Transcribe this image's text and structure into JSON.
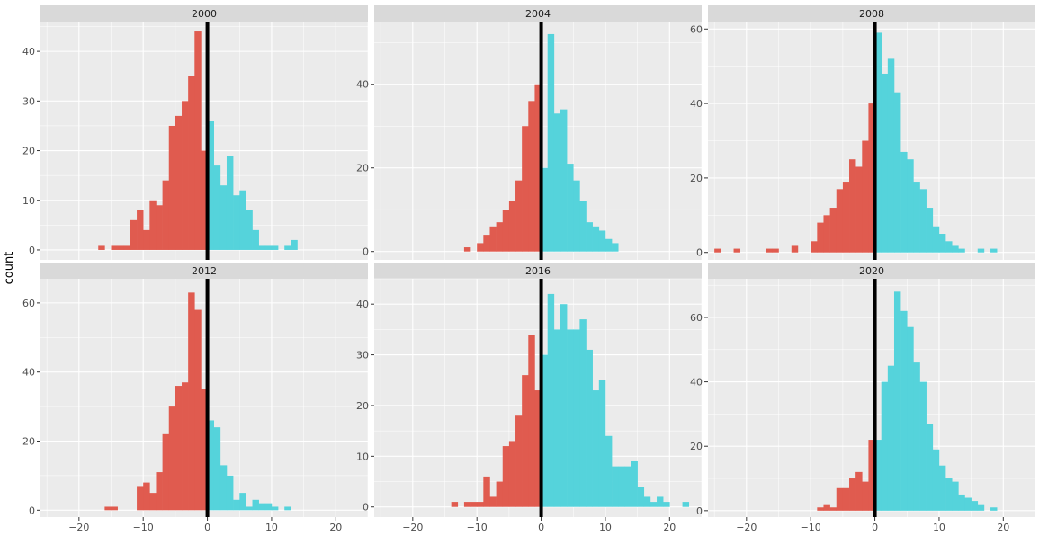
{
  "chart_data": {
    "type": "histogram",
    "ylabel": "count",
    "xlim": [
      -26,
      25
    ],
    "x_ticks": [
      -20,
      -10,
      0,
      10,
      20
    ],
    "vline_x": 0,
    "bin_width": 1,
    "fill_colors": {
      "negative": "#E05B4F",
      "positive": "#55D3DB"
    },
    "panel_background": "#EBEBEB",
    "strip_background": "#D9D9D9",
    "grid_color": "#FFFFFF",
    "grid": true,
    "panels": [
      {
        "label": "2000",
        "ylim": [
          -2,
          46
        ],
        "y_ticks": [
          0,
          10,
          20,
          30,
          40
        ],
        "bins": [
          {
            "x": -17,
            "count": 1
          },
          {
            "x": -15,
            "count": 1
          },
          {
            "x": -14,
            "count": 1
          },
          {
            "x": -13,
            "count": 1
          },
          {
            "x": -12,
            "count": 6
          },
          {
            "x": -11,
            "count": 8
          },
          {
            "x": -10,
            "count": 4
          },
          {
            "x": -9,
            "count": 10
          },
          {
            "x": -8,
            "count": 9
          },
          {
            "x": -7,
            "count": 14
          },
          {
            "x": -6,
            "count": 25
          },
          {
            "x": -5,
            "count": 27
          },
          {
            "x": -4,
            "count": 30
          },
          {
            "x": -3,
            "count": 35
          },
          {
            "x": -2,
            "count": 44
          },
          {
            "x": -1,
            "count": 20
          },
          {
            "x": 0,
            "count": 26
          },
          {
            "x": 1,
            "count": 17
          },
          {
            "x": 2,
            "count": 13
          },
          {
            "x": 3,
            "count": 19
          },
          {
            "x": 4,
            "count": 11
          },
          {
            "x": 5,
            "count": 12
          },
          {
            "x": 6,
            "count": 8
          },
          {
            "x": 7,
            "count": 4
          },
          {
            "x": 8,
            "count": 1
          },
          {
            "x": 9,
            "count": 1
          },
          {
            "x": 10,
            "count": 1
          },
          {
            "x": 11,
            "count": 0
          },
          {
            "x": 12,
            "count": 1
          },
          {
            "x": 13,
            "count": 2
          }
        ]
      },
      {
        "label": "2004",
        "ylim": [
          -2,
          55
        ],
        "y_ticks": [
          0,
          20,
          40
        ],
        "bins": [
          {
            "x": -12,
            "count": 1
          },
          {
            "x": -10,
            "count": 2
          },
          {
            "x": -9,
            "count": 4
          },
          {
            "x": -8,
            "count": 6
          },
          {
            "x": -7,
            "count": 7
          },
          {
            "x": -6,
            "count": 10
          },
          {
            "x": -5,
            "count": 12
          },
          {
            "x": -4,
            "count": 17
          },
          {
            "x": -3,
            "count": 30
          },
          {
            "x": -2,
            "count": 36
          },
          {
            "x": -1,
            "count": 40
          },
          {
            "x": 0,
            "count": 20
          },
          {
            "x": 1,
            "count": 52
          },
          {
            "x": 2,
            "count": 33
          },
          {
            "x": 3,
            "count": 34
          },
          {
            "x": 4,
            "count": 21
          },
          {
            "x": 5,
            "count": 17
          },
          {
            "x": 6,
            "count": 12
          },
          {
            "x": 7,
            "count": 7
          },
          {
            "x": 8,
            "count": 6
          },
          {
            "x": 9,
            "count": 5
          },
          {
            "x": 10,
            "count": 3
          },
          {
            "x": 11,
            "count": 2
          }
        ]
      },
      {
        "label": "2008",
        "ylim": [
          -2,
          62
        ],
        "y_ticks": [
          0,
          20,
          40,
          60
        ],
        "bins": [
          {
            "x": -25,
            "count": 1
          },
          {
            "x": -22,
            "count": 1
          },
          {
            "x": -17,
            "count": 1
          },
          {
            "x": -16,
            "count": 1
          },
          {
            "x": -13,
            "count": 2
          },
          {
            "x": -10,
            "count": 3
          },
          {
            "x": -9,
            "count": 8
          },
          {
            "x": -8,
            "count": 10
          },
          {
            "x": -7,
            "count": 12
          },
          {
            "x": -6,
            "count": 17
          },
          {
            "x": -5,
            "count": 19
          },
          {
            "x": -4,
            "count": 25
          },
          {
            "x": -3,
            "count": 23
          },
          {
            "x": -2,
            "count": 30
          },
          {
            "x": -1,
            "count": 40
          },
          {
            "x": 0,
            "count": 59
          },
          {
            "x": 1,
            "count": 48
          },
          {
            "x": 2,
            "count": 52
          },
          {
            "x": 3,
            "count": 43
          },
          {
            "x": 4,
            "count": 27
          },
          {
            "x": 5,
            "count": 25
          },
          {
            "x": 6,
            "count": 19
          },
          {
            "x": 7,
            "count": 17
          },
          {
            "x": 8,
            "count": 12
          },
          {
            "x": 9,
            "count": 7
          },
          {
            "x": 10,
            "count": 5
          },
          {
            "x": 11,
            "count": 3
          },
          {
            "x": 12,
            "count": 2
          },
          {
            "x": 13,
            "count": 1
          },
          {
            "x": 16,
            "count": 1
          },
          {
            "x": 18,
            "count": 1
          }
        ]
      },
      {
        "label": "2012",
        "ylim": [
          -2,
          67
        ],
        "y_ticks": [
          0,
          20,
          40,
          60
        ],
        "bins": [
          {
            "x": -16,
            "count": 1
          },
          {
            "x": -15,
            "count": 1
          },
          {
            "x": -11,
            "count": 7
          },
          {
            "x": -10,
            "count": 8
          },
          {
            "x": -9,
            "count": 5
          },
          {
            "x": -8,
            "count": 11
          },
          {
            "x": -7,
            "count": 22
          },
          {
            "x": -6,
            "count": 30
          },
          {
            "x": -5,
            "count": 36
          },
          {
            "x": -4,
            "count": 37
          },
          {
            "x": -3,
            "count": 63
          },
          {
            "x": -2,
            "count": 58
          },
          {
            "x": -1,
            "count": 35
          },
          {
            "x": 0,
            "count": 26
          },
          {
            "x": 1,
            "count": 24
          },
          {
            "x": 2,
            "count": 13
          },
          {
            "x": 3,
            "count": 10
          },
          {
            "x": 4,
            "count": 3
          },
          {
            "x": 5,
            "count": 5
          },
          {
            "x": 6,
            "count": 1
          },
          {
            "x": 7,
            "count": 3
          },
          {
            "x": 8,
            "count": 2
          },
          {
            "x": 9,
            "count": 2
          },
          {
            "x": 10,
            "count": 1
          },
          {
            "x": 12,
            "count": 1
          }
        ]
      },
      {
        "label": "2016",
        "ylim": [
          -2,
          45
        ],
        "y_ticks": [
          0,
          10,
          20,
          30,
          40
        ],
        "bins": [
          {
            "x": -14,
            "count": 1
          },
          {
            "x": -12,
            "count": 1
          },
          {
            "x": -11,
            "count": 1
          },
          {
            "x": -10,
            "count": 1
          },
          {
            "x": -9,
            "count": 6
          },
          {
            "x": -8,
            "count": 2
          },
          {
            "x": -7,
            "count": 5
          },
          {
            "x": -6,
            "count": 12
          },
          {
            "x": -5,
            "count": 13
          },
          {
            "x": -4,
            "count": 18
          },
          {
            "x": -3,
            "count": 26
          },
          {
            "x": -2,
            "count": 34
          },
          {
            "x": -1,
            "count": 23
          },
          {
            "x": 0,
            "count": 30
          },
          {
            "x": 1,
            "count": 42
          },
          {
            "x": 2,
            "count": 35
          },
          {
            "x": 3,
            "count": 40
          },
          {
            "x": 4,
            "count": 35
          },
          {
            "x": 5,
            "count": 35
          },
          {
            "x": 6,
            "count": 37
          },
          {
            "x": 7,
            "count": 31
          },
          {
            "x": 8,
            "count": 23
          },
          {
            "x": 9,
            "count": 25
          },
          {
            "x": 10,
            "count": 14
          },
          {
            "x": 11,
            "count": 8
          },
          {
            "x": 12,
            "count": 8
          },
          {
            "x": 13,
            "count": 8
          },
          {
            "x": 14,
            "count": 9
          },
          {
            "x": 15,
            "count": 4
          },
          {
            "x": 16,
            "count": 2
          },
          {
            "x": 17,
            "count": 1
          },
          {
            "x": 18,
            "count": 2
          },
          {
            "x": 19,
            "count": 1
          },
          {
            "x": 22,
            "count": 1
          }
        ]
      },
      {
        "label": "2020",
        "ylim": [
          -2,
          72
        ],
        "y_ticks": [
          0,
          20,
          40,
          60
        ],
        "bins": [
          {
            "x": -9,
            "count": 1
          },
          {
            "x": -8,
            "count": 2
          },
          {
            "x": -7,
            "count": 1
          },
          {
            "x": -6,
            "count": 7
          },
          {
            "x": -5,
            "count": 7
          },
          {
            "x": -4,
            "count": 10
          },
          {
            "x": -3,
            "count": 12
          },
          {
            "x": -2,
            "count": 9
          },
          {
            "x": -1,
            "count": 22
          },
          {
            "x": 0,
            "count": 22
          },
          {
            "x": 1,
            "count": 40
          },
          {
            "x": 2,
            "count": 45
          },
          {
            "x": 3,
            "count": 68
          },
          {
            "x": 4,
            "count": 62
          },
          {
            "x": 5,
            "count": 57
          },
          {
            "x": 6,
            "count": 46
          },
          {
            "x": 7,
            "count": 40
          },
          {
            "x": 8,
            "count": 27
          },
          {
            "x": 9,
            "count": 19
          },
          {
            "x": 10,
            "count": 14
          },
          {
            "x": 11,
            "count": 10
          },
          {
            "x": 12,
            "count": 9
          },
          {
            "x": 13,
            "count": 5
          },
          {
            "x": 14,
            "count": 4
          },
          {
            "x": 15,
            "count": 3
          },
          {
            "x": 16,
            "count": 2
          },
          {
            "x": 18,
            "count": 1
          }
        ]
      }
    ]
  }
}
